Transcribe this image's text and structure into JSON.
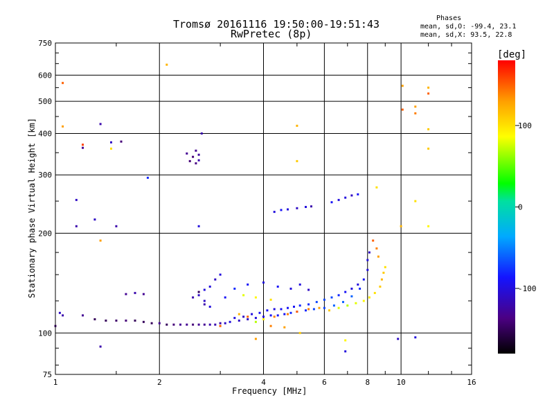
{
  "chart_data": {
    "type": "scatter",
    "title": "Tromsø 20161116 19:50:00-19:51:43",
    "subtitle": "RwPretec (8p)",
    "xlabel": "Frequency [MHz]",
    "ylabel": "Stationary phase Virtual Height [km]",
    "x_scale": "log",
    "y_scale": "log",
    "xlim": [
      1,
      16
    ],
    "ylim": [
      75,
      750
    ],
    "x_ticks": [
      1,
      2,
      4,
      6,
      8,
      10,
      16
    ],
    "y_ticks": [
      75,
      100,
      200,
      300,
      400,
      500,
      600,
      750
    ],
    "grid": true,
    "colorbar": {
      "label": "[deg]",
      "ticks": [
        100,
        0,
        -100
      ],
      "min": -180,
      "max": 180
    },
    "annotation": {
      "header": "Phases",
      "o_line": "mean, sd,O:  -99.4, 23.1",
      "x_line": "mean, sd,X:  93.5, 22.8"
    },
    "series": [
      {
        "values": [
          [
            1.2,
            113,
            -130
          ],
          [
            1.3,
            110,
            -150
          ],
          [
            1.4,
            109,
            -150
          ],
          [
            1.5,
            109,
            -145
          ],
          [
            1.6,
            109,
            -140
          ],
          [
            1.7,
            109,
            -150
          ],
          [
            1.8,
            108,
            -150
          ],
          [
            1.9,
            107,
            -150
          ],
          [
            2.0,
            107,
            -130
          ],
          [
            2.1,
            106,
            -150
          ],
          [
            2.2,
            106,
            -140
          ],
          [
            2.3,
            106,
            -130
          ],
          [
            2.4,
            106,
            -130
          ],
          [
            2.5,
            106,
            -140
          ],
          [
            2.6,
            106,
            -130
          ],
          [
            2.7,
            106,
            -130
          ],
          [
            2.8,
            106,
            -120
          ],
          [
            2.9,
            106,
            -120
          ],
          [
            3.0,
            107,
            -120
          ],
          [
            3.1,
            107,
            -110
          ],
          [
            3.2,
            108,
            -100
          ],
          [
            3.4,
            109,
            -110
          ],
          [
            3.6,
            110,
            -110
          ],
          [
            3.8,
            111,
            -100
          ],
          [
            4.0,
            112,
            -100
          ],
          [
            4.2,
            113,
            -90
          ],
          [
            4.4,
            113,
            -90
          ],
          [
            4.6,
            114,
            -90
          ],
          [
            4.8,
            115,
            -80
          ],
          [
            5.0,
            116,
            -80
          ],
          [
            5.3,
            117,
            -80
          ],
          [
            5.6,
            118,
            -70
          ],
          [
            6.0,
            119,
            -70
          ],
          [
            6.4,
            121,
            -60
          ],
          [
            6.8,
            124,
            -60
          ],
          [
            7.2,
            129,
            -60
          ],
          [
            7.6,
            136,
            -80
          ],
          [
            7.8,
            145,
            -90
          ],
          [
            8.0,
            155,
            -100
          ],
          [
            8.0,
            166,
            -100
          ],
          [
            8.1,
            175,
            -110
          ]
        ]
      },
      {
        "values": [
          [
            3.3,
            111,
            -100
          ],
          [
            3.5,
            112,
            -110
          ],
          [
            3.7,
            114,
            -100
          ],
          [
            3.9,
            115,
            -90
          ],
          [
            4.1,
            117,
            -90
          ],
          [
            4.3,
            118,
            -100
          ],
          [
            4.5,
            118,
            -90
          ],
          [
            4.7,
            119,
            -90
          ],
          [
            4.9,
            120,
            -90
          ],
          [
            5.1,
            121,
            -80
          ],
          [
            5.4,
            122,
            -80
          ],
          [
            5.7,
            124,
            -70
          ],
          [
            6.0,
            126,
            -70
          ],
          [
            6.3,
            128,
            -70
          ],
          [
            6.6,
            130,
            -80
          ],
          [
            6.9,
            133,
            -90
          ],
          [
            7.2,
            136,
            -100
          ],
          [
            7.5,
            140,
            -100
          ]
        ]
      },
      {
        "values": [
          [
            3.4,
            114,
            120
          ],
          [
            3.6,
            112,
            150
          ],
          [
            3.8,
            108,
            70
          ],
          [
            4.0,
            110,
            90
          ],
          [
            4.3,
            112,
            140
          ],
          [
            4.7,
            114,
            140
          ],
          [
            5.0,
            116,
            150
          ],
          [
            5.4,
            118,
            140
          ],
          [
            5.8,
            119,
            130
          ],
          [
            6.2,
            117,
            110
          ],
          [
            6.6,
            119,
            80
          ],
          [
            7.0,
            121,
            70
          ],
          [
            7.4,
            123,
            80
          ],
          [
            7.8,
            125,
            90
          ],
          [
            8.1,
            128,
            95
          ],
          [
            8.4,
            132,
            100
          ],
          [
            8.7,
            138,
            110
          ],
          [
            8.8,
            145,
            120
          ],
          [
            8.9,
            152,
            110
          ],
          [
            9.0,
            158,
            100
          ],
          [
            8.6,
            170,
            130
          ],
          [
            8.5,
            180,
            140
          ],
          [
            8.3,
            190,
            150
          ],
          [
            3.5,
            130,
            80
          ],
          [
            3.8,
            128,
            90
          ],
          [
            4.2,
            126,
            100
          ]
        ]
      },
      {
        "values": [
          [
            1.6,
            131,
            -130
          ],
          [
            1.7,
            132,
            -120
          ],
          [
            1.8,
            131,
            -130
          ],
          [
            2.6,
            130,
            -110
          ],
          [
            2.7,
            135,
            -100
          ],
          [
            2.8,
            138,
            -100
          ],
          [
            2.7,
            125,
            -110
          ],
          [
            2.5,
            128,
            -120
          ],
          [
            2.9,
            145,
            -110
          ],
          [
            3.0,
            150,
            -100
          ],
          [
            2.6,
            133,
            -150
          ],
          [
            2.7,
            122,
            -120
          ],
          [
            2.8,
            120,
            -100
          ],
          [
            3.1,
            128,
            -90
          ],
          [
            3.3,
            136,
            -80
          ],
          [
            3.6,
            140,
            -90
          ],
          [
            4.0,
            142,
            -100
          ],
          [
            4.4,
            138,
            -90
          ],
          [
            4.8,
            136,
            -100
          ],
          [
            5.1,
            140,
            -100
          ],
          [
            5.4,
            135,
            -110
          ],
          [
            2.4,
            348,
            -130
          ],
          [
            2.5,
            340,
            -140
          ],
          [
            2.6,
            332,
            -120
          ],
          [
            2.55,
            355,
            -130
          ],
          [
            2.45,
            330,
            -140
          ],
          [
            2.6,
            345,
            -125
          ],
          [
            2.55,
            325,
            -135
          ],
          [
            2.65,
            400,
            -120
          ],
          [
            4.3,
            232,
            -100
          ],
          [
            4.5,
            235,
            -90
          ],
          [
            4.7,
            236,
            -100
          ],
          [
            5.0,
            238,
            -110
          ],
          [
            5.3,
            240,
            -100
          ],
          [
            5.5,
            241,
            -120
          ],
          [
            6.3,
            248,
            -90
          ],
          [
            6.6,
            252,
            -100
          ],
          [
            6.9,
            256,
            -100
          ],
          [
            7.2,
            260,
            -110
          ],
          [
            7.5,
            262,
            -90
          ],
          [
            1.15,
            252,
            -110
          ],
          [
            1.15,
            210,
            -120
          ],
          [
            1.2,
            362,
            -130
          ],
          [
            1.3,
            220,
            -110
          ],
          [
            1.5,
            210,
            -120
          ],
          [
            1.55,
            378,
            -140
          ],
          [
            1.35,
            427,
            -120
          ],
          [
            1.45,
            376,
            -110
          ],
          [
            1.85,
            294,
            -80
          ],
          [
            2.6,
            210,
            -100
          ],
          [
            11.0,
            97,
            -100
          ],
          [
            9.8,
            96,
            -110
          ],
          [
            6.9,
            88,
            -100
          ],
          [
            1.35,
            91,
            -120
          ],
          [
            1.0,
            105,
            -140
          ],
          [
            1.05,
            113,
            -120
          ],
          [
            1.03,
            115,
            -110
          ]
        ]
      },
      {
        "values": [
          [
            2.1,
            645,
            120
          ],
          [
            1.05,
            568,
            150
          ],
          [
            10.1,
            557,
            130
          ],
          [
            12.0,
            550,
            120
          ],
          [
            12.0,
            528,
            150
          ],
          [
            11.0,
            482,
            130
          ],
          [
            10.1,
            472,
            150
          ],
          [
            11.0,
            460,
            140
          ],
          [
            5.0,
            422,
            120
          ],
          [
            1.05,
            420,
            130
          ],
          [
            12.0,
            412,
            110
          ],
          [
            1.2,
            370,
            160
          ],
          [
            1.45,
            360,
            100
          ],
          [
            12.0,
            360,
            110
          ],
          [
            5.0,
            330,
            110
          ],
          [
            8.5,
            275,
            100
          ],
          [
            11.0,
            250,
            100
          ],
          [
            12.0,
            210,
            90
          ],
          [
            10.0,
            210,
            120
          ],
          [
            1.35,
            190,
            130
          ],
          [
            4.2,
            105,
            140
          ],
          [
            3.0,
            105,
            150
          ],
          [
            3.8,
            96,
            130
          ],
          [
            4.6,
            104,
            130
          ],
          [
            5.1,
            100,
            110
          ],
          [
            6.9,
            95,
            90
          ]
        ]
      }
    ]
  },
  "labels": {
    "x_ticks": [
      "1",
      "2",
      "4",
      "6",
      "8",
      "10",
      "16"
    ],
    "y_ticks": [
      "75",
      "100",
      "200",
      "300",
      "400",
      "500",
      "600",
      "750"
    ],
    "cb_ticks": [
      "100",
      "0",
      "-100"
    ]
  }
}
